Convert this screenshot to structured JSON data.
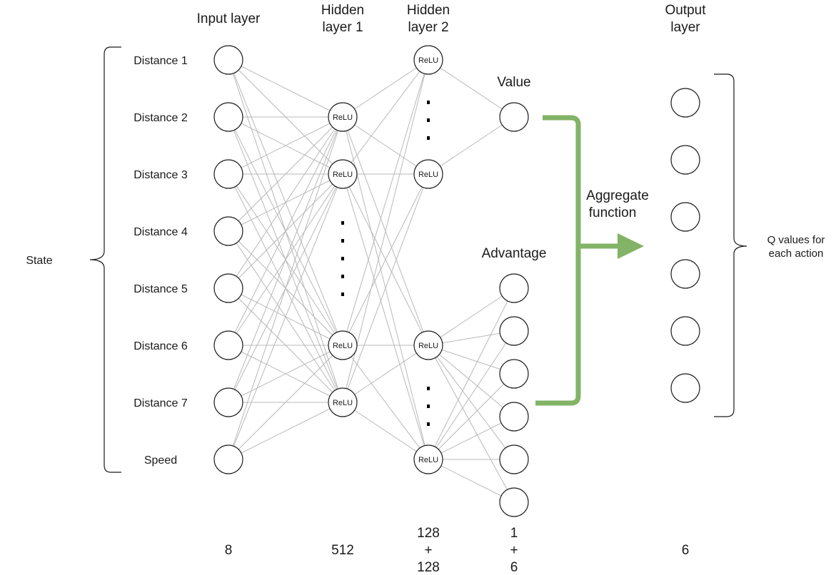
{
  "headers": {
    "input": [
      "Input layer"
    ],
    "hidden1": [
      "Hidden",
      "layer 1"
    ],
    "hidden2": [
      "Hidden",
      "layer 2"
    ],
    "output": [
      "Output",
      "layer"
    ]
  },
  "input_labels": [
    "Distance 1",
    "Distance 2",
    "Distance 3",
    "Distance 4",
    "Distance 5",
    "Distance 6",
    "Distance 7",
    "Speed"
  ],
  "state_label": "State",
  "relu_label": "ReLU",
  "value_label": "Value",
  "advantage_label": "Advantage",
  "aggregate_label": [
    "Aggregate",
    "function"
  ],
  "q_label": [
    "Q values for",
    "each action"
  ],
  "counts": {
    "input": [
      "8"
    ],
    "hidden1": [
      "512"
    ],
    "hidden2": [
      "128",
      "+",
      "128"
    ],
    "streams": [
      "1",
      "+",
      "6"
    ],
    "output": [
      "6"
    ]
  },
  "colors": {
    "arrow": "#82b366",
    "edge": "#b8b8b8",
    "stroke": "#1a1a1a"
  }
}
